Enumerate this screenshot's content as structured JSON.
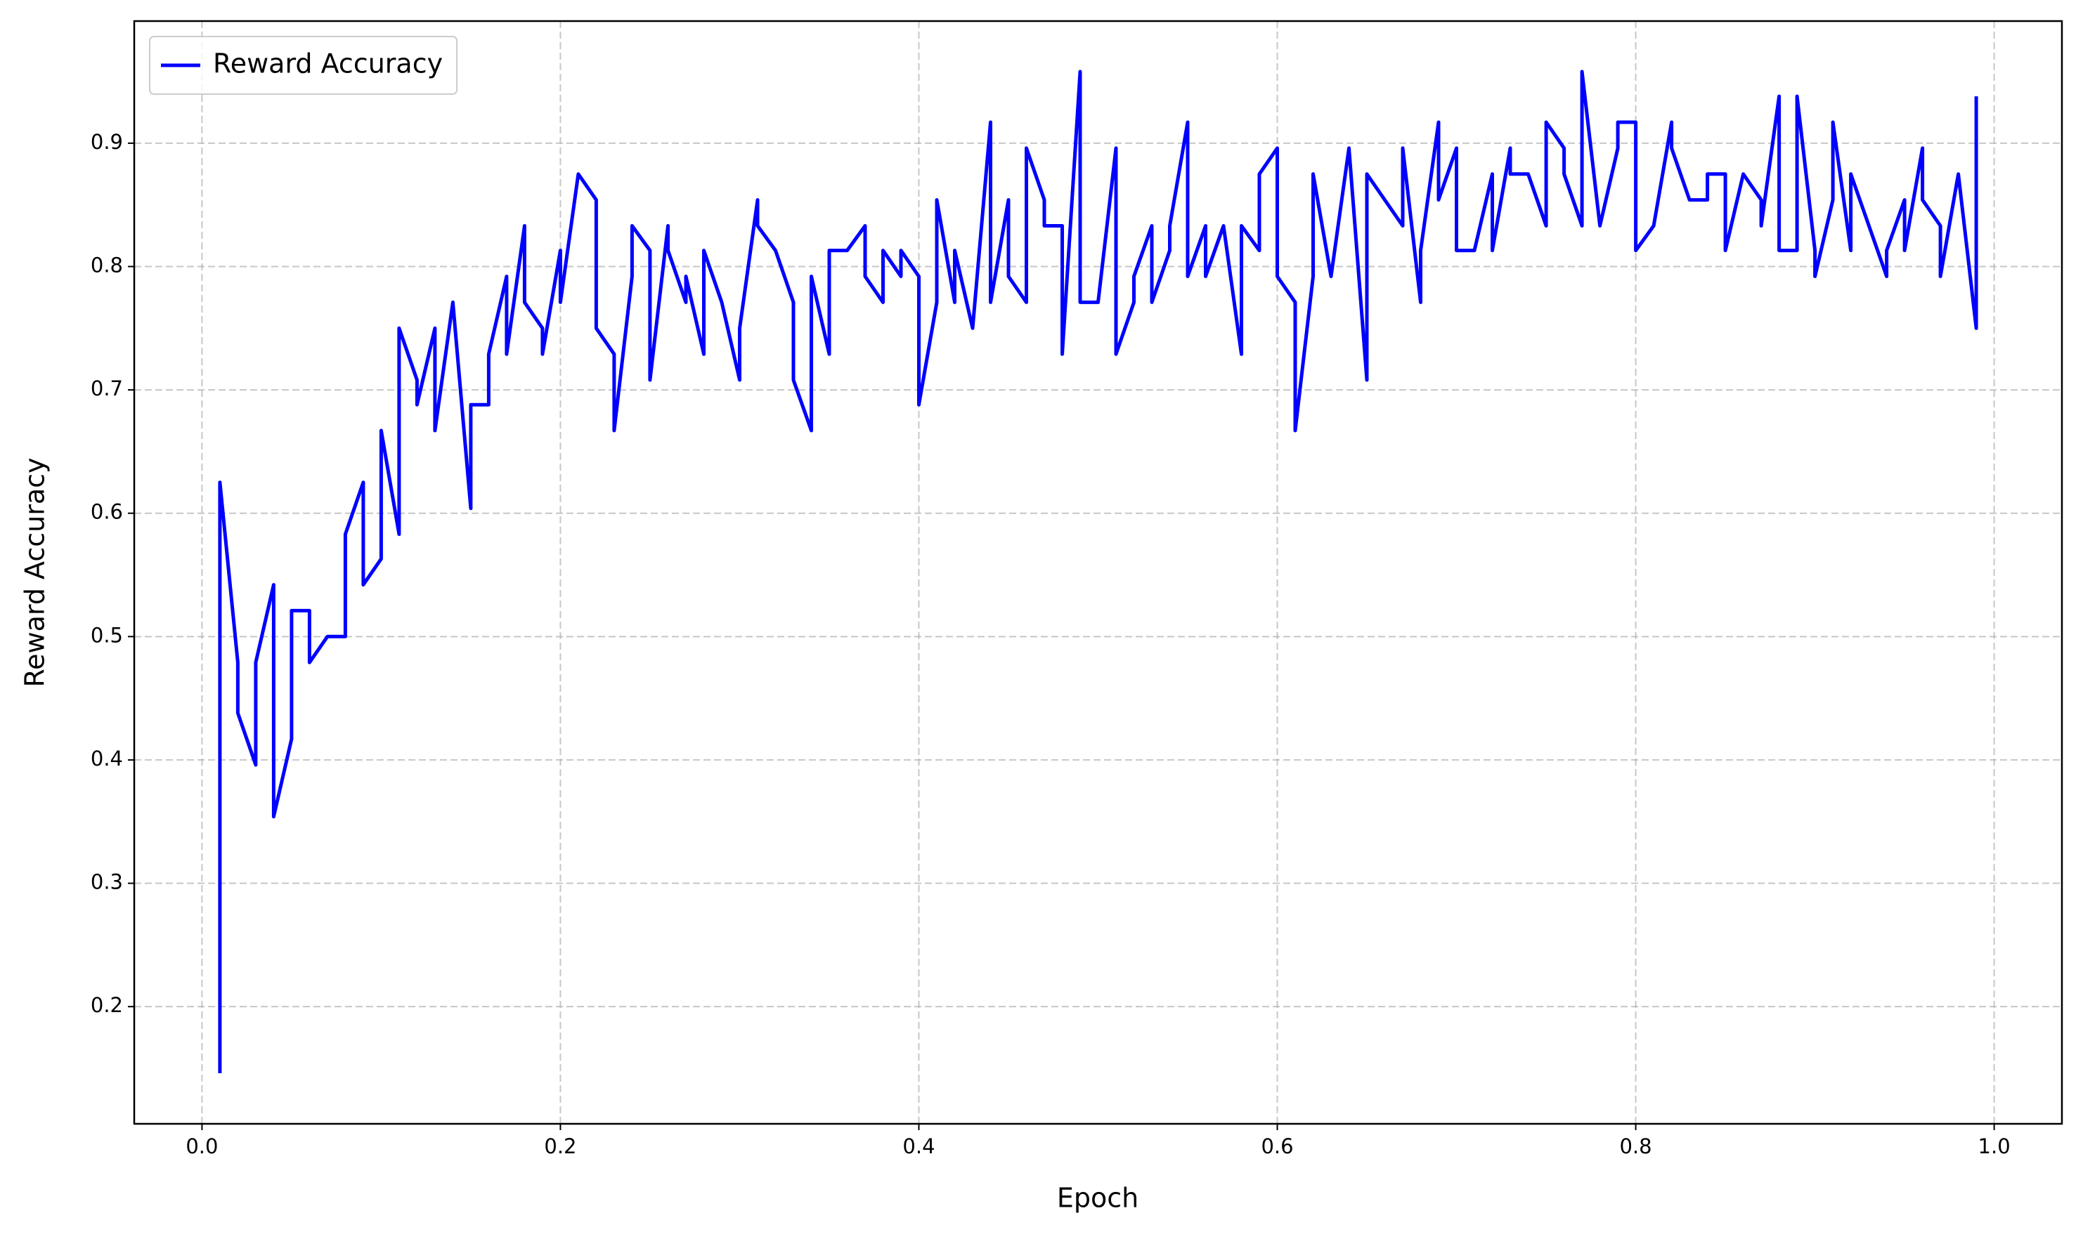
{
  "chart_data": {
    "type": "line",
    "xlabel": "Epoch",
    "ylabel": "Reward Accuracy",
    "x": [
      0.01,
      0.01,
      0.02,
      0.02,
      0.03,
      0.03,
      0.04,
      0.04,
      0.05,
      0.05,
      0.06,
      0.06,
      0.07,
      0.08,
      0.08,
      0.09,
      0.09,
      0.1,
      0.1,
      0.11,
      0.11,
      0.12,
      0.12,
      0.13,
      0.13,
      0.14,
      0.15,
      0.15,
      0.16,
      0.16,
      0.17,
      0.17,
      0.18,
      0.18,
      0.19,
      0.19,
      0.2,
      0.2,
      0.21,
      0.22,
      0.22,
      0.23,
      0.23,
      0.24,
      0.24,
      0.25,
      0.25,
      0.26,
      0.26,
      0.27,
      0.27,
      0.28,
      0.28,
      0.29,
      0.3,
      0.3,
      0.31,
      0.31,
      0.32,
      0.33,
      0.33,
      0.34,
      0.34,
      0.35,
      0.35,
      0.36,
      0.37,
      0.37,
      0.38,
      0.38,
      0.39,
      0.39,
      0.4,
      0.4,
      0.41,
      0.41,
      0.42,
      0.42,
      0.43,
      0.44,
      0.44,
      0.45,
      0.45,
      0.46,
      0.46,
      0.47,
      0.47,
      0.48,
      0.48,
      0.49,
      0.49,
      0.5,
      0.51,
      0.51,
      0.52,
      0.52,
      0.53,
      0.53,
      0.54,
      0.54,
      0.55,
      0.55,
      0.56,
      0.56,
      0.57,
      0.58,
      0.58,
      0.59,
      0.59,
      0.6,
      0.6,
      0.61,
      0.61,
      0.62,
      0.62,
      0.63,
      0.64,
      0.65,
      0.65,
      0.67,
      0.67,
      0.68,
      0.68,
      0.69,
      0.69,
      0.7,
      0.7,
      0.71,
      0.72,
      0.72,
      0.73,
      0.73,
      0.74,
      0.75,
      0.75,
      0.76,
      0.76,
      0.77,
      0.77,
      0.78,
      0.79,
      0.79,
      0.8,
      0.8,
      0.81,
      0.82,
      0.82,
      0.83,
      0.84,
      0.84,
      0.85,
      0.85,
      0.86,
      0.87,
      0.87,
      0.88,
      0.88,
      0.89,
      0.89,
      0.9,
      0.9,
      0.91,
      0.91,
      0.92,
      0.92,
      0.94,
      0.94,
      0.95,
      0.95,
      0.96,
      0.96,
      0.97,
      0.97,
      0.98,
      0.99,
      0.99
    ],
    "series": [
      {
        "name": "Reward Accuracy",
        "color": "#0000ff",
        "values": [
          0.146,
          0.625,
          0.479,
          0.438,
          0.396,
          0.479,
          0.542,
          0.354,
          0.417,
          0.521,
          0.521,
          0.479,
          0.5,
          0.5,
          0.583,
          0.625,
          0.542,
          0.563,
          0.667,
          0.583,
          0.75,
          0.708,
          0.688,
          0.75,
          0.667,
          0.771,
          0.604,
          0.688,
          0.688,
          0.729,
          0.792,
          0.729,
          0.833,
          0.771,
          0.75,
          0.729,
          0.813,
          0.771,
          0.875,
          0.854,
          0.75,
          0.729,
          0.667,
          0.792,
          0.833,
          0.813,
          0.708,
          0.833,
          0.813,
          0.771,
          0.792,
          0.729,
          0.813,
          0.771,
          0.708,
          0.75,
          0.854,
          0.833,
          0.813,
          0.771,
          0.708,
          0.667,
          0.792,
          0.729,
          0.813,
          0.813,
          0.833,
          0.792,
          0.771,
          0.813,
          0.792,
          0.813,
          0.792,
          0.688,
          0.771,
          0.854,
          0.771,
          0.813,
          0.75,
          0.917,
          0.771,
          0.854,
          0.792,
          0.771,
          0.896,
          0.854,
          0.833,
          0.833,
          0.729,
          0.958,
          0.771,
          0.771,
          0.896,
          0.729,
          0.771,
          0.792,
          0.833,
          0.771,
          0.813,
          0.833,
          0.917,
          0.792,
          0.833,
          0.792,
          0.833,
          0.729,
          0.833,
          0.813,
          0.875,
          0.896,
          0.792,
          0.771,
          0.667,
          0.792,
          0.875,
          0.792,
          0.896,
          0.708,
          0.875,
          0.833,
          0.896,
          0.771,
          0.813,
          0.917,
          0.854,
          0.896,
          0.813,
          0.813,
          0.875,
          0.813,
          0.896,
          0.875,
          0.875,
          0.833,
          0.917,
          0.896,
          0.875,
          0.833,
          0.958,
          0.833,
          0.896,
          0.917,
          0.917,
          0.813,
          0.833,
          0.917,
          0.896,
          0.854,
          0.854,
          0.875,
          0.875,
          0.813,
          0.875,
          0.854,
          0.833,
          0.938,
          0.813,
          0.813,
          0.938,
          0.813,
          0.792,
          0.854,
          0.917,
          0.813,
          0.875,
          0.792,
          0.813,
          0.854,
          0.813,
          0.896,
          0.854,
          0.833,
          0.792,
          0.875,
          0.75,
          0.938
        ]
      }
    ],
    "xlim": [
      -0.0378,
      1.0378
    ],
    "xticks": [
      {
        "value": 0,
        "label": "0.0"
      },
      0.2,
      0.4,
      0.6,
      0.8,
      {
        "value": 1,
        "label": "1.0"
      }
    ],
    "ylim": [
      0.105,
      0.999
    ],
    "yticks": [
      0.2,
      0.3,
      0.4,
      0.5,
      0.6,
      0.7,
      0.8,
      0.9
    ],
    "grid": true,
    "legend": "upper left"
  }
}
